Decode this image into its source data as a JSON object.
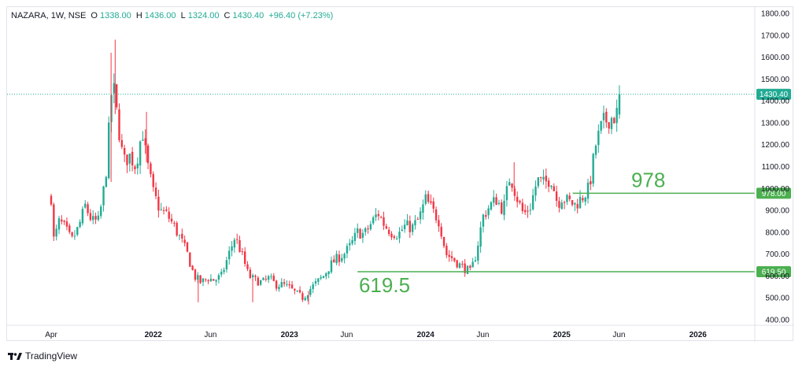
{
  "header": {
    "symbol": "NAZARA, 1W, NSE",
    "o_label": "O",
    "o_value": "1338.00",
    "h_label": "H",
    "h_value": "1436.00",
    "l_label": "L",
    "l_value": "1324.00",
    "c_label": "C",
    "c_value": "1430.40",
    "change": "+96.40 (+7.23%)"
  },
  "footer": {
    "brand": "TradingView",
    "logo_icon": "tradingview-logo-icon"
  },
  "colors": {
    "up": "#22ab94",
    "down": "#f23645",
    "level": "#4caf50",
    "axis_text": "#131722"
  },
  "chart_data": {
    "type": "candlestick",
    "timeframe": "1W",
    "y_axis": {
      "position": "right",
      "ylim": [
        350,
        1820
      ],
      "ticks": [
        "1800.00",
        "1700.00",
        "1600.00",
        "1500.00",
        "1400.00",
        "1300.00",
        "1200.00",
        "1100.00",
        "1000.00",
        "900.00",
        "800.00",
        "700.00",
        "600.00",
        "500.00",
        "400.00"
      ]
    },
    "x_axis": {
      "ticks": [
        {
          "label": "Apr",
          "t": 0,
          "bold": false
        },
        {
          "label": "2022",
          "t": 0.75,
          "bold": true
        },
        {
          "label": "Jun",
          "t": 1.17,
          "bold": false
        },
        {
          "label": "2023",
          "t": 1.75,
          "bold": true
        },
        {
          "label": "Jun",
          "t": 2.17,
          "bold": false
        },
        {
          "label": "2024",
          "t": 2.75,
          "bold": true
        },
        {
          "label": "Jun",
          "t": 3.17,
          "bold": false
        },
        {
          "label": "2025",
          "t": 3.75,
          "bold": true
        },
        {
          "label": "Jun",
          "t": 4.17,
          "bold": false
        },
        {
          "label": "2026",
          "t": 4.75,
          "bold": true
        }
      ]
    },
    "last_price": {
      "value": 1430.4,
      "label": "1430.40"
    },
    "levels": [
      {
        "value": 978,
        "label": "978.00",
        "annotation": "978",
        "start_t": 3.83
      },
      {
        "value": 619.5,
        "label": "619.50",
        "annotation": "619.5",
        "start_t": 2.25
      }
    ],
    "price_path": [
      [
        0.0,
        960
      ],
      [
        0.02,
        760
      ],
      [
        0.06,
        850
      ],
      [
        0.1,
        820
      ],
      [
        0.15,
        760
      ],
      [
        0.2,
        820
      ],
      [
        0.25,
        920
      ],
      [
        0.3,
        850
      ],
      [
        0.35,
        850
      ],
      [
        0.4,
        1050
      ],
      [
        0.45,
        1500
      ],
      [
        0.48,
        1350
      ],
      [
        0.53,
        1120
      ],
      [
        0.58,
        1150
      ],
      [
        0.62,
        1100
      ],
      [
        0.67,
        1270
      ],
      [
        0.7,
        1130
      ],
      [
        0.75,
        980
      ],
      [
        0.8,
        900
      ],
      [
        0.85,
        880
      ],
      [
        0.9,
        830
      ],
      [
        0.95,
        770
      ],
      [
        1.0,
        700
      ],
      [
        1.05,
        600
      ],
      [
        1.1,
        570
      ],
      [
        1.15,
        590
      ],
      [
        1.2,
        580
      ],
      [
        1.25,
        600
      ],
      [
        1.3,
        690
      ],
      [
        1.35,
        780
      ],
      [
        1.4,
        700
      ],
      [
        1.45,
        600
      ],
      [
        1.5,
        580
      ],
      [
        1.55,
        570
      ],
      [
        1.6,
        590
      ],
      [
        1.65,
        560
      ],
      [
        1.7,
        560
      ],
      [
        1.75,
        545
      ],
      [
        1.8,
        520
      ],
      [
        1.85,
        500
      ],
      [
        1.9,
        540
      ],
      [
        1.95,
        570
      ],
      [
        2.0,
        600
      ],
      [
        2.05,
        650
      ],
      [
        2.1,
        680
      ],
      [
        2.15,
        700
      ],
      [
        2.2,
        740
      ],
      [
        2.25,
        800
      ],
      [
        2.3,
        790
      ],
      [
        2.35,
        840
      ],
      [
        2.4,
        890
      ],
      [
        2.45,
        830
      ],
      [
        2.5,
        800
      ],
      [
        2.55,
        790
      ],
      [
        2.6,
        830
      ],
      [
        2.65,
        820
      ],
      [
        2.7,
        860
      ],
      [
        2.75,
        950
      ],
      [
        2.8,
        900
      ],
      [
        2.85,
        850
      ],
      [
        2.9,
        700
      ],
      [
        2.95,
        680
      ],
      [
        3.0,
        650
      ],
      [
        3.05,
        630
      ],
      [
        3.08,
        615
      ],
      [
        3.12,
        700
      ],
      [
        3.17,
        870
      ],
      [
        3.22,
        920
      ],
      [
        3.27,
        950
      ],
      [
        3.32,
        900
      ],
      [
        3.37,
        1060
      ],
      [
        3.42,
        960
      ],
      [
        3.47,
        880
      ],
      [
        3.52,
        920
      ],
      [
        3.57,
        1040
      ],
      [
        3.62,
        1020
      ],
      [
        3.67,
        1050
      ],
      [
        3.72,
        930
      ],
      [
        3.75,
        960
      ],
      [
        3.8,
        940
      ],
      [
        3.85,
        925
      ],
      [
        3.9,
        960
      ],
      [
        3.95,
        1000
      ],
      [
        4.0,
        1200
      ],
      [
        4.05,
        1300
      ],
      [
        4.1,
        1320
      ],
      [
        4.15,
        1330
      ],
      [
        4.18,
        1430
      ]
    ],
    "wick_spikes": [
      [
        0.47,
        1680,
        1340
      ],
      [
        0.44,
        1620,
        1030
      ],
      [
        0.7,
        1350,
        1120
      ],
      [
        1.08,
        480,
        0
      ],
      [
        1.48,
        480,
        0
      ],
      [
        1.89,
        470,
        0
      ],
      [
        2.77,
        990,
        0
      ],
      [
        3.4,
        1120,
        0
      ]
    ]
  }
}
